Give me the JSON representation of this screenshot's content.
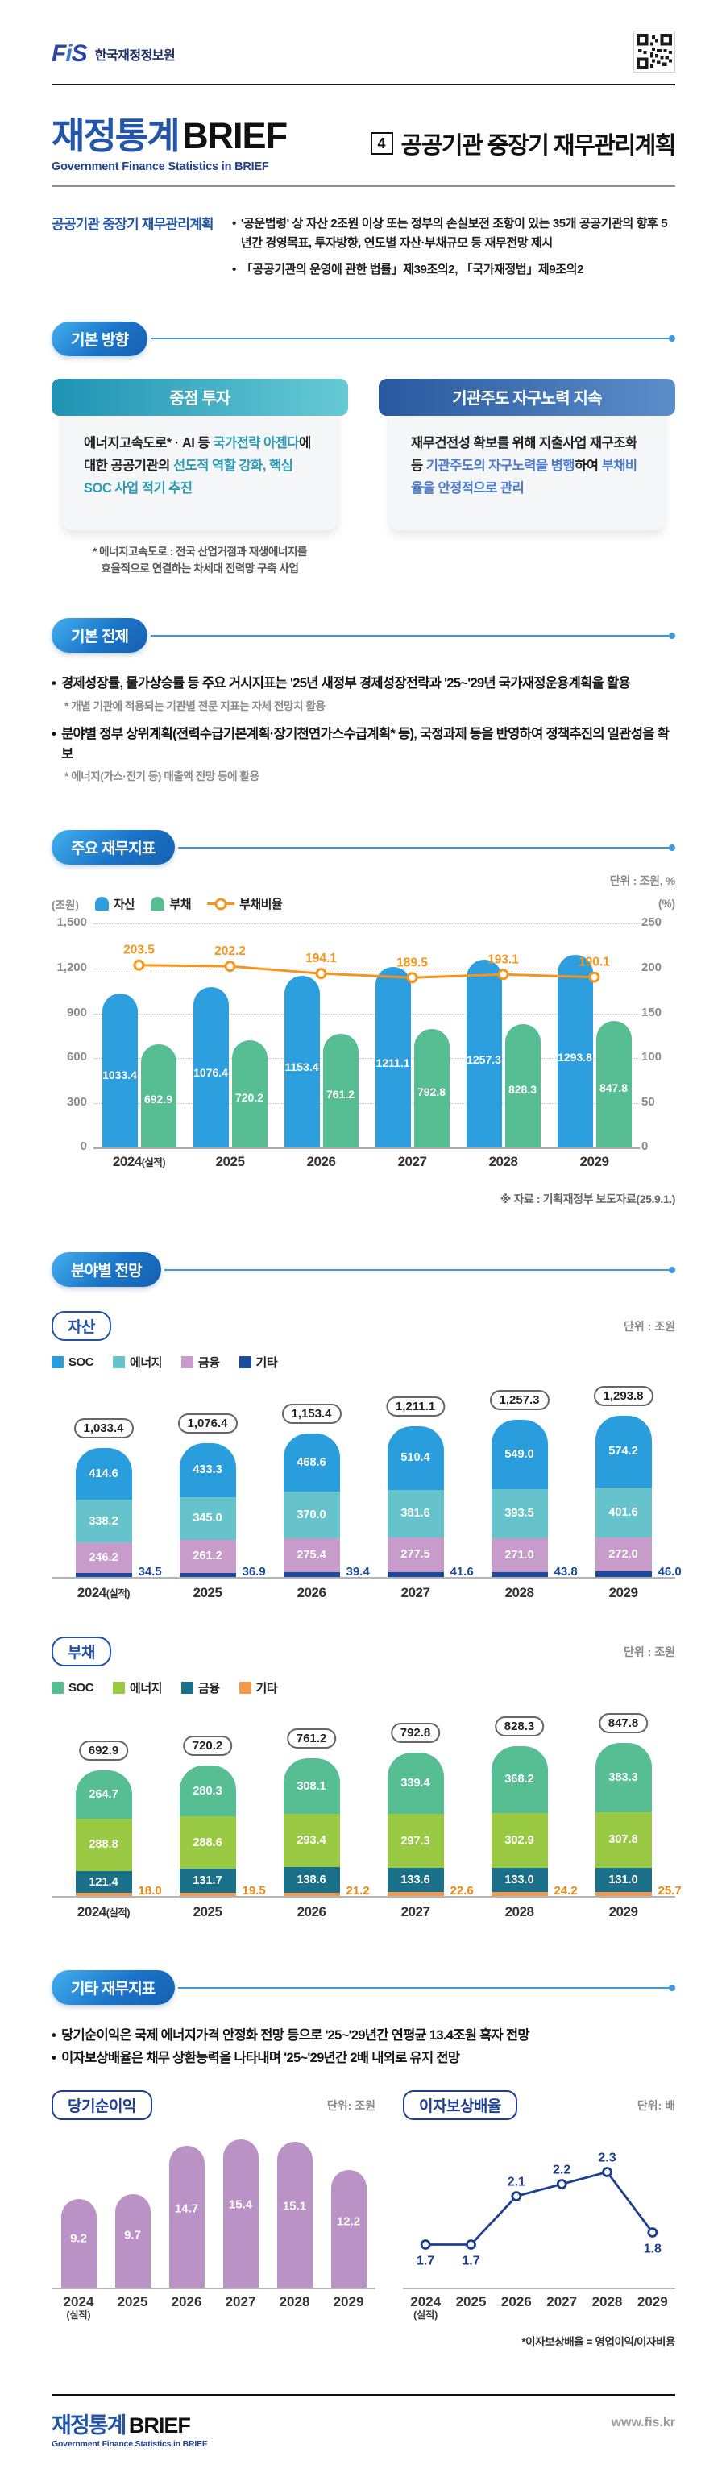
{
  "header": {
    "logo_text": "FiS",
    "org_name": "한국재정정보원"
  },
  "masthead": {
    "brand_kr": "재정통계",
    "brand_en": "BRIEF",
    "brand_sub": "Government Finance Statistics in BRIEF",
    "issue_no": "4",
    "issue_title": "공공기관 중장기 재무관리계획"
  },
  "overview": {
    "label": "공공기관 중장기 재무관리계획",
    "bullets": [
      "'공운법령' 상 자산 2조원 이상 또는 정부의 손실보전 조항이 있는 35개 공공기관의 향후 5년간 경영목표, 투자방향, 연도별 자산·부채규모 등 재무전망 제시",
      "「공공기관의 운영에 관한 법률」제39조의2, 「국가재정법」제9조의2"
    ]
  },
  "basic_direction": {
    "title": "기본 방향",
    "cards": [
      {
        "header": "중점 투자",
        "em_class": "em-teal",
        "segments": [
          {
            "t": "에너지고속도로* · AI 등 "
          },
          {
            "t": "국가전략 아젠다",
            "em": true
          },
          {
            "t": "에 대한 공공기관의 "
          },
          {
            "t": "선도적 역할 강화, 핵심 SOC 사업 적기 추진",
            "em": true
          }
        ]
      },
      {
        "header": "기관주도 자구노력 지속",
        "em_class": "em-blue",
        "segments": [
          {
            "t": "재무건전성 확보를 위해 지출사업 재구조화 등 "
          },
          {
            "t": "기관주도의 자구노력을 병행",
            "em": true
          },
          {
            "t": "하여 "
          },
          {
            "t": "부채비율을 안정적으로 관리",
            "em": true
          }
        ]
      }
    ],
    "footnote": "* 에너지고속도로 : 전국 산업거점과 재생에너지를\n효율적으로 연결하는 차세대 전력망 구축 사업"
  },
  "basic_premise": {
    "title": "기본 전제",
    "items": [
      {
        "text": "경제성장률, 물가상승률 등 주요 거시지표는 '25년 새정부 경제성장전략과 '25~'29년 국가재정운용계획을 활용",
        "note": "* 개별 기관에 적용되는 기관별 전문 지표는 자체 전망치 활용"
      },
      {
        "text": "분야별 정부 상위계획(전력수급기본계획·장기천연가스수급계획* 등), 국정과제 등을 반영하여 정책추진의 일관성을 확보",
        "note": "* 에너지(가스·전기 등) 매출액 전망 등에 활용"
      }
    ]
  },
  "key_indicators": {
    "title": "주요 재무지표",
    "unit": "단위 : 조원, %",
    "left_axis_unit": "(조원)",
    "right_axis_unit": "(%)",
    "source": "※ 자료 : 기획재정부 보도자료(25.9.1.)"
  },
  "sector_section": {
    "title": "분야별 전망"
  },
  "other_indicators": {
    "title": "기타 재무지표",
    "bullets": [
      "당기순이익은 국제 에너지가격 안정화 전망 등으로 '25~'29년간 연평균 13.4조원 흑자 전망",
      "이자보상배율은 채무 상환능력을 나타내며 '25~'29년간 2배 내외로 유지 전망"
    ]
  },
  "footer": {
    "brand_kr": "재정통계",
    "brand_en": "BRIEF",
    "brand_sub": "Government Finance Statistics in BRIEF",
    "url": "www.fis.kr"
  },
  "chart_data": [
    {
      "id": "main",
      "type": "bar",
      "title": "주요 재무지표",
      "unit": "조원, %",
      "categories": [
        "2024(실적)",
        "2025",
        "2026",
        "2027",
        "2028",
        "2029"
      ],
      "series": [
        {
          "name": "자산",
          "color": "#2d9ede",
          "values": [
            1033.4,
            1076.4,
            1153.4,
            1211.1,
            1257.3,
            1293.8
          ]
        },
        {
          "name": "부채",
          "color": "#57bd93",
          "values": [
            692.9,
            720.2,
            761.2,
            792.8,
            828.3,
            847.8
          ]
        }
      ],
      "line": {
        "name": "부채비율",
        "color": "#f5951e",
        "values": [
          203.5,
          202.2,
          194.1,
          189.5,
          193.1,
          190.1
        ]
      },
      "left_ticks": [
        "1,500",
        "1,200",
        "900",
        "600",
        "300",
        "0"
      ],
      "right_ticks": [
        "250",
        "200",
        "150",
        "100",
        "50",
        "0"
      ],
      "left_max": 1500,
      "right_max": 250,
      "grid": true,
      "legend_position": "top"
    },
    {
      "id": "assets",
      "type": "bar",
      "title": "자산",
      "unit": "단위 : 조원",
      "stacked": true,
      "categories": [
        "2024(실적)",
        "2025",
        "2026",
        "2027",
        "2028",
        "2029"
      ],
      "totals": [
        "1,033.4",
        "1,076.4",
        "1,153.4",
        "1,211.1",
        "1,257.3",
        "1,293.8"
      ],
      "colors": [
        "#2a9edc",
        "#66c3cc",
        "#c79cca",
        "#1b4a9e"
      ],
      "side_color": "#1b4a9e",
      "series": [
        {
          "name": "SOC",
          "values": [
            414.6,
            433.3,
            468.6,
            510.4,
            549.0,
            574.2
          ]
        },
        {
          "name": "에너지",
          "values": [
            338.2,
            345.0,
            370.0,
            381.6,
            393.5,
            401.6
          ]
        },
        {
          "name": "금융",
          "values": [
            246.2,
            261.2,
            275.4,
            277.5,
            271.0,
            272.0
          ]
        },
        {
          "name": "기타",
          "values": [
            34.5,
            36.9,
            39.4,
            41.6,
            43.8,
            46.0
          ]
        }
      ]
    },
    {
      "id": "debt",
      "type": "bar",
      "title": "부채",
      "unit": "단위 : 조원",
      "stacked": true,
      "categories": [
        "2024(실적)",
        "2025",
        "2026",
        "2027",
        "2028",
        "2029"
      ],
      "totals": [
        "692.9",
        "720.2",
        "761.2",
        "792.8",
        "828.3",
        "847.8"
      ],
      "colors": [
        "#57bd93",
        "#9ac943",
        "#1b7089",
        "#f2994e"
      ],
      "side_color": "#f2870f",
      "series": [
        {
          "name": "SOC",
          "values": [
            264.7,
            280.3,
            308.1,
            339.4,
            368.2,
            383.3
          ]
        },
        {
          "name": "에너지",
          "values": [
            288.8,
            288.6,
            293.4,
            297.3,
            302.9,
            307.8
          ]
        },
        {
          "name": "금융",
          "values": [
            121.4,
            131.7,
            138.6,
            133.6,
            133.0,
            131.0
          ]
        },
        {
          "name": "기타",
          "values": [
            18.0,
            19.5,
            21.2,
            22.6,
            24.2,
            25.7
          ]
        }
      ]
    },
    {
      "id": "net_income",
      "type": "bar",
      "title": "당기순이익",
      "unit": "단위: 조원",
      "color": "#bb92c6",
      "categories": [
        "2024(실적)",
        "2025",
        "2026",
        "2027",
        "2028",
        "2029"
      ],
      "values": [
        9.2,
        9.7,
        14.7,
        15.4,
        15.1,
        12.2
      ]
    },
    {
      "id": "interest_coverage",
      "type": "line",
      "title": "이자보상배율",
      "unit": "단위: 배",
      "color": "#1d3e91",
      "categories": [
        "2024(실적)",
        "2025",
        "2026",
        "2027",
        "2028",
        "2029"
      ],
      "values": [
        1.7,
        1.7,
        2.1,
        2.2,
        2.3,
        1.8
      ],
      "label_positions": [
        "below",
        "below",
        "above",
        "above",
        "above",
        "below"
      ],
      "footnote": "*이자보상배율 = 영업이익/이자비용"
    }
  ]
}
